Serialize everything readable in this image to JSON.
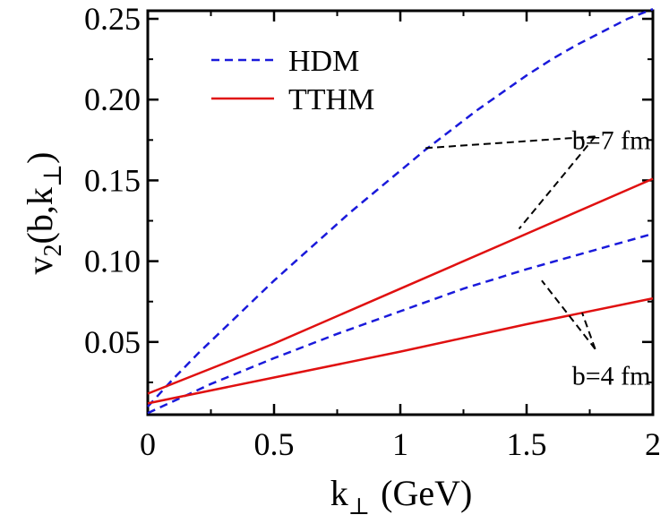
{
  "chart_data": {
    "type": "line",
    "xlabel": "k",
    "xlabel_sub": "⊥",
    "xlabel_unit": "(GeV)",
    "ylabel": {
      "pre": "v",
      "sub2": "2",
      "mid": "(b,k",
      "sub_perp": "⊥",
      "post": ")"
    },
    "xlim": [
      0,
      2
    ],
    "ylim": [
      0.005,
      0.255
    ],
    "xticks": [
      0,
      0.5,
      1,
      1.5,
      2
    ],
    "xtick_labels": [
      "0",
      "0.5",
      "1",
      "1.5",
      "2"
    ],
    "yticks": [
      0.05,
      0.1,
      0.15,
      0.2,
      0.25
    ],
    "ytick_labels": [
      "0.05",
      "0.10",
      "0.15",
      "0.20",
      "0.25"
    ],
    "legend": {
      "position": "top-left",
      "entries": [
        {
          "label": "HDM",
          "color": "#1a1adb",
          "dash": "dashed"
        },
        {
          "label": "TTHM",
          "color": "#e01010",
          "dash": "solid"
        }
      ]
    },
    "series": [
      {
        "name": "HDM b=7 fm",
        "model": "HDM",
        "color": "#1a1adb",
        "dash": "dashed",
        "x": [
          0,
          0.1,
          0.2,
          0.3,
          0.4,
          0.5,
          0.6,
          0.7,
          0.8,
          0.9,
          1.0,
          1.1,
          1.2,
          1.3,
          1.4,
          1.5,
          1.6,
          1.7,
          1.8,
          1.9,
          2.0
        ],
        "y": [
          0.01,
          0.027,
          0.043,
          0.058,
          0.073,
          0.088,
          0.102,
          0.116,
          0.13,
          0.143,
          0.156,
          0.169,
          0.181,
          0.193,
          0.204,
          0.215,
          0.225,
          0.234,
          0.242,
          0.25,
          0.256
        ]
      },
      {
        "name": "TTHM b=7 fm",
        "model": "TTHM",
        "color": "#e01010",
        "dash": "solid",
        "x": [
          0,
          0.5,
          1.0,
          1.5,
          2.0
        ],
        "y": [
          0.018,
          0.049,
          0.083,
          0.117,
          0.151
        ]
      },
      {
        "name": "HDM b=4 fm",
        "model": "HDM",
        "color": "#1a1adb",
        "dash": "dashed",
        "x": [
          0,
          0.25,
          0.5,
          0.75,
          1.0,
          1.25,
          1.5,
          1.75,
          2.0
        ],
        "y": [
          0.006,
          0.024,
          0.04,
          0.055,
          0.069,
          0.083,
          0.095,
          0.106,
          0.117
        ]
      },
      {
        "name": "TTHM b=4 fm",
        "model": "TTHM",
        "color": "#e01010",
        "dash": "solid",
        "x": [
          0,
          0.5,
          1.0,
          1.5,
          2.0
        ],
        "y": [
          0.012,
          0.028,
          0.044,
          0.061,
          0.077
        ]
      }
    ],
    "annotations": [
      {
        "text": "b=7 fm",
        "x": 1.8,
        "y": 0.175,
        "pointers": [
          [
            1.1,
            0.17
          ],
          [
            1.47,
            0.12
          ]
        ]
      },
      {
        "text": "b=4 fm",
        "x": 1.8,
        "y": 0.029,
        "pointers": [
          [
            1.56,
            0.088
          ],
          [
            1.72,
            0.068
          ]
        ]
      }
    ]
  }
}
